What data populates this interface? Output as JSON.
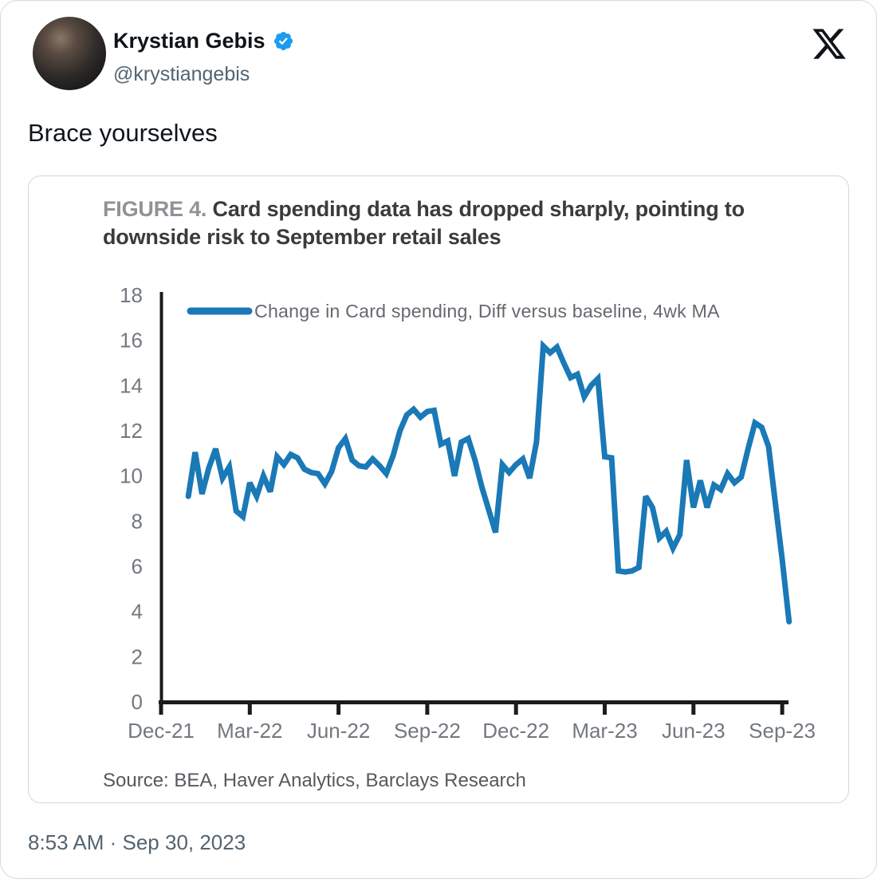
{
  "tweet": {
    "author": {
      "name": "Krystian Gebis",
      "handle": "@krystiangebis",
      "verified": true
    },
    "body": "Brace yourselves",
    "timestamp": "8:53 AM · Sep 30, 2023"
  },
  "figure": {
    "title_prefix": "FIGURE 4.",
    "title_text": "Card spending data has dropped sharply, pointing to downside risk to September retail sales",
    "source": "Source: BEA, Haver Analytics, Barclays Research"
  },
  "chart_data": {
    "type": "line",
    "title": "FIGURE 4. Card spending data has dropped sharply, pointing to downside risk to September retail sales",
    "xlabel": "",
    "ylabel": "",
    "legend_position": "top-left inside plot",
    "legend": [
      {
        "label": "Change in Card spending, Diff versus baseline, 4wk MA",
        "color": "#1a79b6"
      }
    ],
    "axes": {
      "ylim": [
        0,
        18
      ],
      "y_ticks": [
        0,
        2,
        4,
        6,
        8,
        10,
        12,
        14,
        16,
        18
      ],
      "x_tick_labels": [
        "Dec-21",
        "Mar-22",
        "Jun-22",
        "Sep-22",
        "Dec-22",
        "Mar-23",
        "Jun-23",
        "Sep-23"
      ],
      "x_tick_weeks": [
        0,
        13,
        26,
        39,
        52,
        65,
        78,
        91
      ],
      "grid": false,
      "frame": "left-bottom-only"
    },
    "series": [
      {
        "name": "Change in Card spending, Diff versus baseline, 4wk MA",
        "color": "#1a79b6",
        "x_unit": "weeks-after-Dec-21-tick",
        "x_start_week": 4,
        "x_step_weeks": 1,
        "values": [
          9.1,
          11.05,
          9.2,
          10.35,
          11.2,
          9.9,
          10.4,
          8.45,
          8.2,
          9.7,
          9.1,
          10.0,
          9.3,
          10.85,
          10.5,
          10.95,
          10.8,
          10.3,
          10.15,
          10.1,
          9.65,
          10.2,
          11.25,
          11.65,
          10.7,
          10.45,
          10.4,
          10.75,
          10.45,
          10.1,
          10.9,
          12.0,
          12.7,
          12.95,
          12.6,
          12.85,
          12.9,
          11.4,
          11.55,
          10.0,
          11.5,
          11.65,
          10.7,
          9.5,
          8.5,
          7.5,
          10.5,
          10.15,
          10.5,
          10.75,
          9.9,
          11.5,
          15.75,
          15.45,
          15.7,
          15.0,
          14.35,
          14.5,
          13.5,
          14.0,
          14.3,
          10.85,
          10.8,
          5.8,
          5.75,
          5.8,
          5.95,
          9.1,
          8.6,
          7.25,
          7.55,
          6.8,
          7.4,
          10.7,
          8.6,
          9.8,
          8.6,
          9.6,
          9.4,
          10.1,
          9.7,
          9.95,
          11.2,
          12.35,
          12.15,
          11.3,
          8.8,
          6.3,
          3.55
        ]
      }
    ],
    "source_note": "Source: BEA, Haver Analytics, Barclays Research"
  },
  "colors": {
    "line_blue": "#1a79b6",
    "verified_blue": "#1d9bf0",
    "text_dark": "#0f1419",
    "text_muted": "#536471",
    "axis_line": "#1b1b1b",
    "axis_label": "#73787f",
    "legend_text": "#65696e",
    "card_border": "#cfd9de"
  }
}
